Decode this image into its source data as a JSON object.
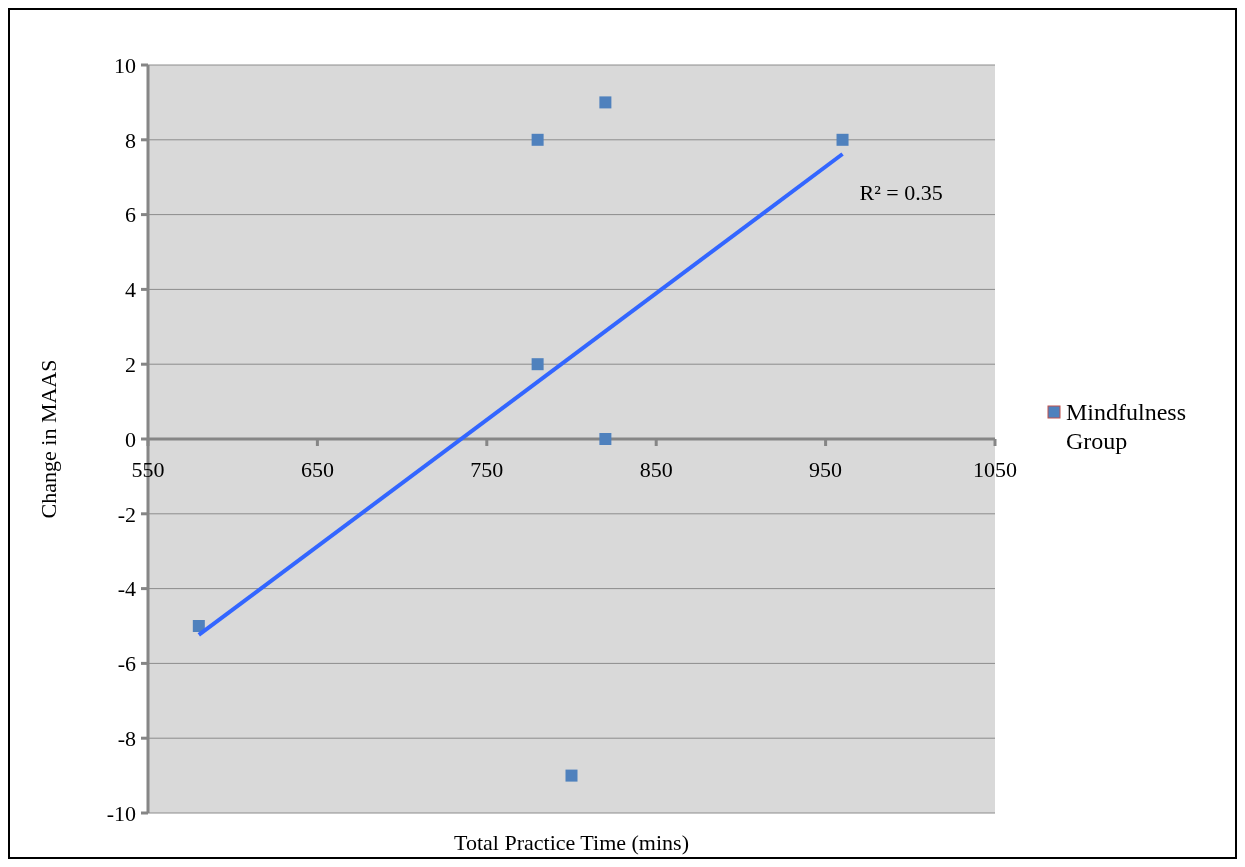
{
  "chart_data": {
    "type": "scatter",
    "xlabel": "Total Practice Time (mins)",
    "ylabel": "Change in MAAS",
    "xlim": [
      550,
      1050
    ],
    "xticks": [
      550,
      650,
      750,
      850,
      950,
      1050
    ],
    "ylim": [
      -10,
      10
    ],
    "yticks": [
      -10,
      -8,
      -6,
      -4,
      -2,
      0,
      2,
      4,
      6,
      8,
      10
    ],
    "grid": "y",
    "legend": "right",
    "marker": "square",
    "series": [
      {
        "name": "Mindfulness Group",
        "color": "#4f81bd",
        "x": [
          580,
          780,
          780,
          800,
          820,
          820,
          960
        ],
        "values": [
          -5,
          8,
          2,
          -9,
          9,
          0,
          8
        ]
      },
      {
        "type": "line",
        "color": "#3366ff",
        "x": [
          580,
          960
        ],
        "values": [
          -5.24,
          7.62
        ],
        "marker": "none"
      }
    ],
    "annotations": [
      "R² = 0.35"
    ]
  }
}
